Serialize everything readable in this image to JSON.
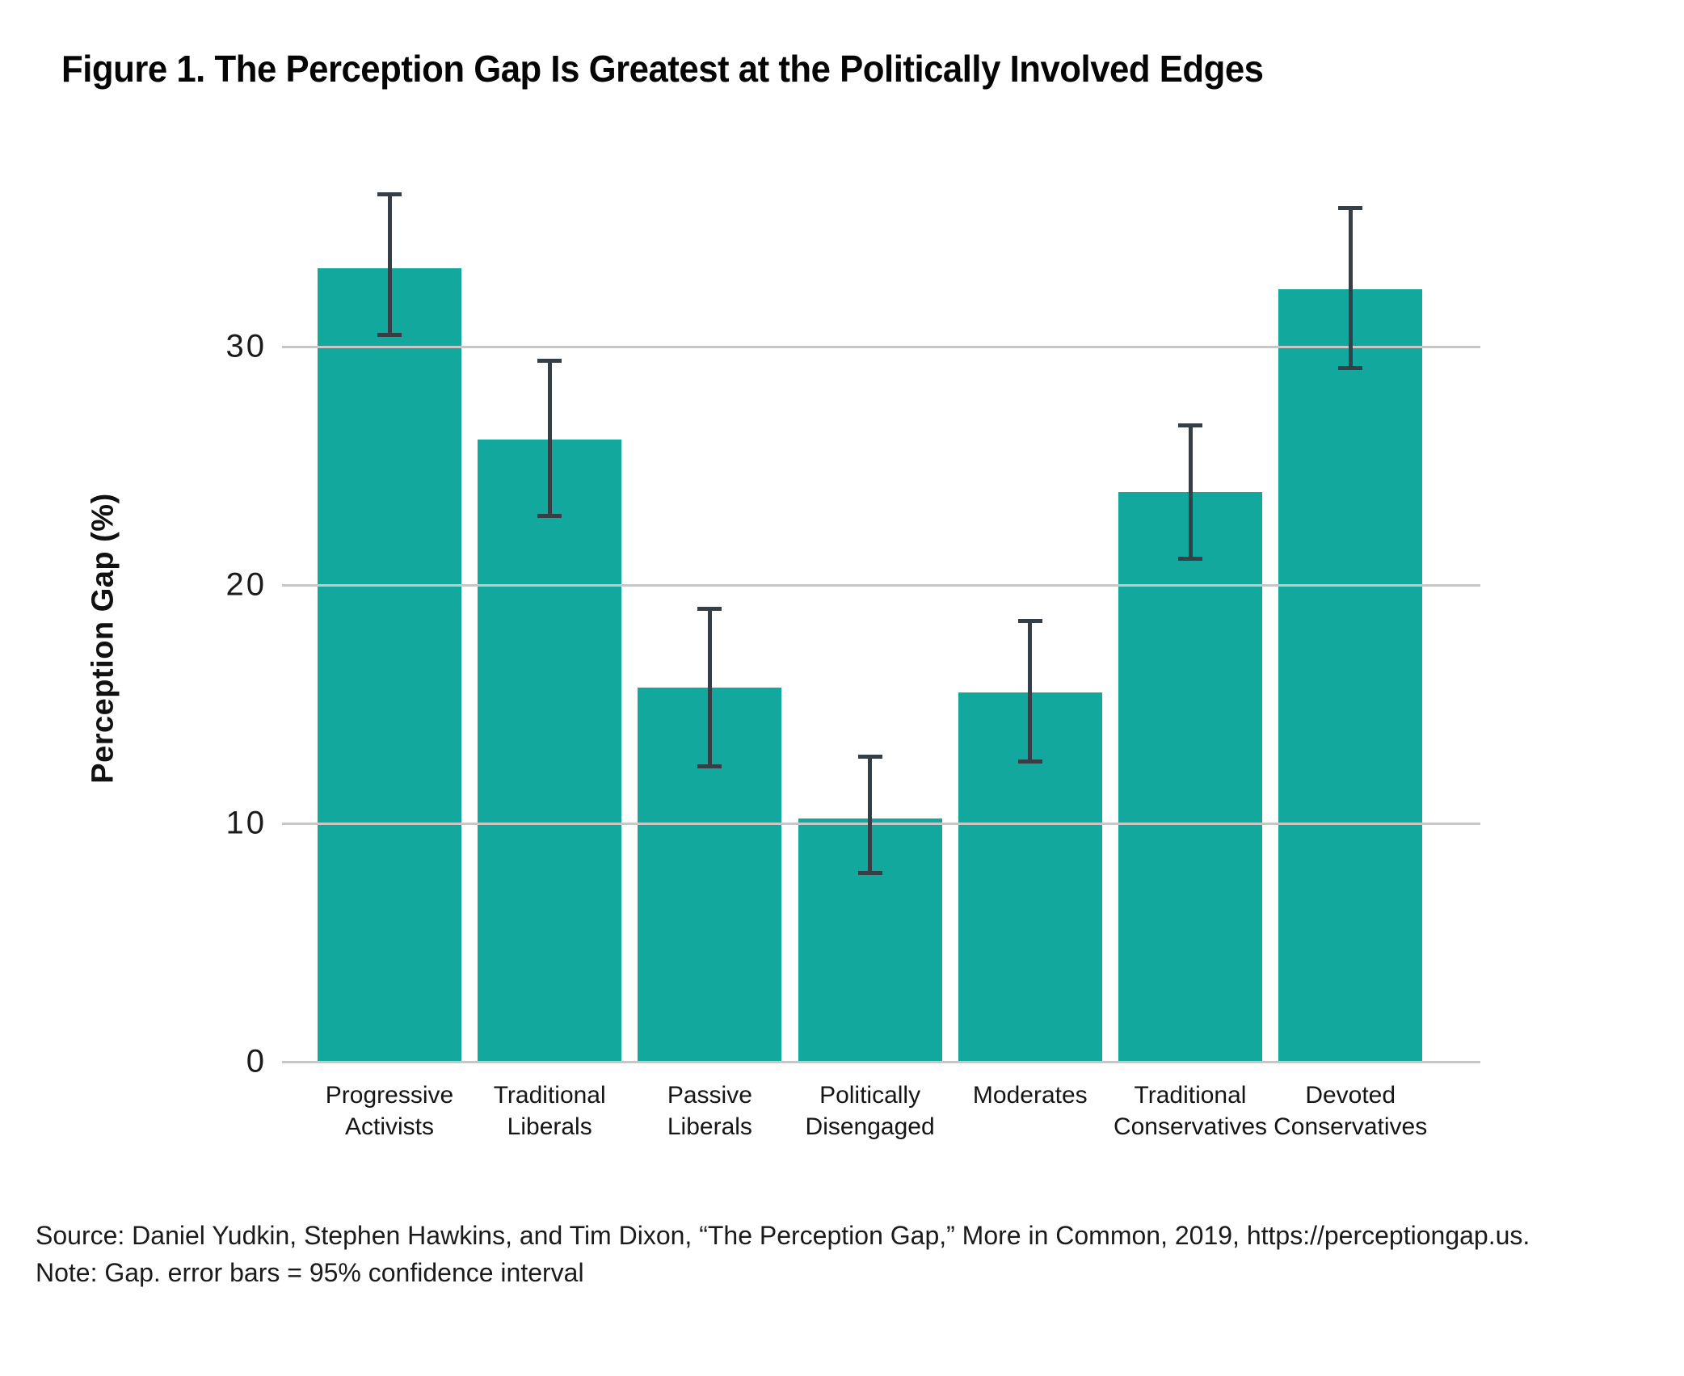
{
  "figure": {
    "title": "Figure 1. The Perception Gap Is Greatest at the Politically Involved Edges",
    "source_line": "Source: Daniel Yudkin, Stephen Hawkins, and Tim Dixon, “The Perception Gap,” More in Common, 2019, https://perceptiongap.us.",
    "note_line": "Note: Gap. error bars = 95% confidence interval"
  },
  "chart_data": {
    "type": "bar",
    "title": "Figure 1. The Perception Gap Is Greatest at the Politically Involved Edges",
    "xlabel": "",
    "ylabel": "Perception Gap (%)",
    "categories": [
      "Progressive Activists",
      "Traditional Liberals",
      "Passive Liberals",
      "Politically Disengaged",
      "Moderates",
      "Traditional Conservatives",
      "Devoted Conservatives"
    ],
    "category_lines": [
      [
        "Progressive",
        "Activists"
      ],
      [
        "Traditional",
        "Liberals"
      ],
      [
        "Passive",
        "Liberals"
      ],
      [
        "Politically",
        "Disengaged"
      ],
      [
        "Moderates"
      ],
      [
        "Traditional",
        "Conservatives"
      ],
      [
        "Devoted",
        "Conservatives"
      ]
    ],
    "values": [
      33.3,
      26.1,
      15.7,
      10.2,
      15.5,
      23.9,
      32.4
    ],
    "error_low": [
      30.5,
      22.9,
      12.4,
      7.9,
      12.6,
      21.1,
      29.1
    ],
    "error_high": [
      36.4,
      29.4,
      19.0,
      12.8,
      18.5,
      26.7,
      35.8
    ],
    "error_note": "95% confidence interval",
    "yticks": [
      0,
      10,
      20,
      30
    ],
    "ylim": [
      0,
      38.8
    ],
    "grid": "horizontal",
    "legend": "none",
    "bar_color": "#12A89E",
    "error_bar_color": "#363E46",
    "gridline_color": "#C7C7C7",
    "text_color": "#1A1A1A",
    "background_color": "#FFFFFF"
  }
}
